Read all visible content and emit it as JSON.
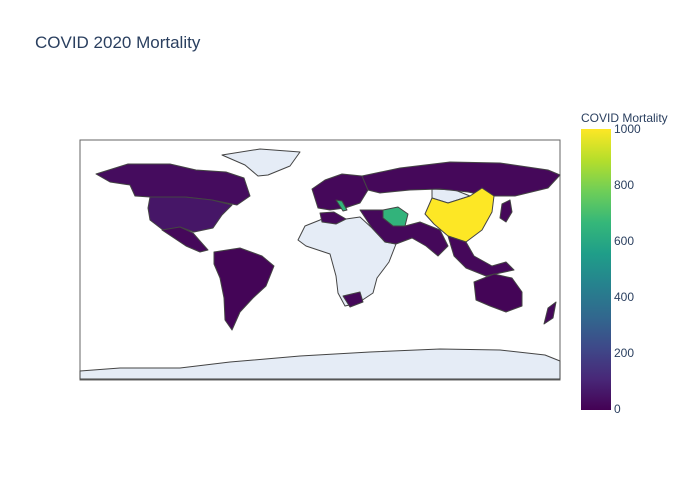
{
  "title": "COVID 2020 Mortality",
  "colors": {
    "nodata": "#E5ECF6",
    "outline": "#444444",
    "frame": "#666666",
    "scale": [
      "#440154",
      "#482878",
      "#3e4989",
      "#31688e",
      "#26828e",
      "#1f9e89",
      "#35b779",
      "#6ece58",
      "#b5de2b",
      "#fde725"
    ]
  },
  "colorbar": {
    "title": "COVID Mortality",
    "range": [
      0,
      1000
    ],
    "ticks": [
      "1000",
      "800",
      "600",
      "400",
      "200",
      "0"
    ]
  },
  "chart_data": {
    "type": "choropleth",
    "projection": "equirectangular",
    "colorscale": "Viridis",
    "zmin": 0,
    "zmax": 1000,
    "colorbar_title": "COVID Mortality",
    "regions": [
      {
        "name": "China",
        "value": 1000
      },
      {
        "name": "Iran",
        "value": 650
      },
      {
        "name": "Italy",
        "value": 650
      },
      {
        "name": "United States",
        "value": 60
      },
      {
        "name": "Canada",
        "value": 30
      },
      {
        "name": "Russia",
        "value": 20
      },
      {
        "name": "Brazil",
        "value": 10
      },
      {
        "name": "Australia",
        "value": 10
      }
    ]
  }
}
